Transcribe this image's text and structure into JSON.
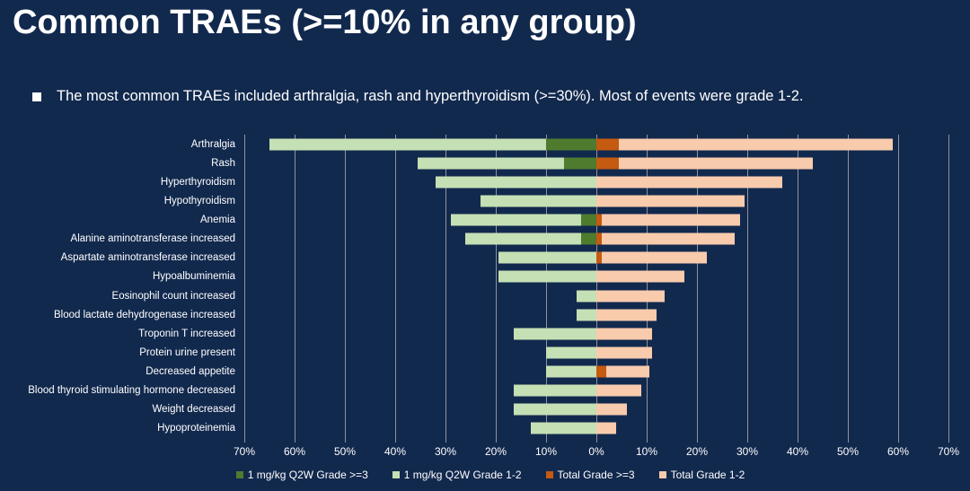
{
  "slide": {
    "title": "Common TRAEs (>=10% in any group)",
    "bullet_text": "The most common TRAEs included arthralgia, rash and hyperthyroidism (>=30%). Most of events were grade 1-2."
  },
  "colors": {
    "background": "#12294e",
    "text": "#ffffff",
    "gridline": "#a6a6a6",
    "q2w_grade3": "#4f7b2f",
    "q2w_grade12": "#c5e0b4",
    "total_grade3": "#c55a11",
    "total_grade12": "#f8cbad"
  },
  "chart_data": {
    "type": "bar",
    "variant": "horizontal-diverging-stacked",
    "title": "",
    "xlabel": "",
    "ylabel": "",
    "unit": "%",
    "grid": true,
    "categories": [
      "Arthralgia",
      "Rash",
      "Hyperthyroidism",
      "Hypothyroidism",
      "Anemia",
      "Alanine aminotransferase increased",
      "Aspartate aminotransferase increased",
      "Hypoalbuminemia",
      "Eosinophil count increased",
      "Blood lactate dehydrogenase increased",
      "Troponin T increased",
      "Protein urine present",
      "Decreased appetite",
      "Blood thyroid stimulating hormone decreased",
      "Weight decreased",
      "Hypoproteinemia"
    ],
    "series": [
      {
        "name": "1 mg/kg Q2W Grade >=3",
        "side": "left",
        "color_key": "q2w_grade3",
        "values": [
          10,
          6.5,
          0,
          0,
          3,
          3,
          0,
          0,
          0,
          0,
          0,
          0,
          0,
          0,
          0,
          0
        ]
      },
      {
        "name": "1 mg/kg Q2W Grade 1-2",
        "side": "left",
        "color_key": "q2w_grade12",
        "values": [
          55,
          29,
          32,
          23,
          26,
          23,
          19.5,
          19.5,
          4,
          4,
          16.5,
          10,
          10,
          16.5,
          16.5,
          13
        ]
      },
      {
        "name": "Total Grade >=3",
        "side": "right",
        "color_key": "total_grade3",
        "values": [
          4.5,
          4.5,
          0,
          0,
          1,
          1,
          1,
          0,
          0,
          0,
          0,
          0,
          2,
          0,
          0,
          0
        ]
      },
      {
        "name": "Total Grade 1-2",
        "side": "right",
        "color_key": "total_grade12",
        "values": [
          54.5,
          38.5,
          37,
          29.5,
          27.5,
          26.5,
          21,
          17.5,
          13.5,
          12,
          11,
          11,
          8.5,
          9,
          6,
          4
        ]
      }
    ],
    "axis": {
      "min": -70,
      "max": 70,
      "step": 10,
      "tick_values": [
        -70,
        -60,
        -50,
        -40,
        -30,
        -20,
        -10,
        0,
        10,
        20,
        30,
        40,
        50,
        60,
        70
      ],
      "tick_labels": [
        "70%",
        "60%",
        "50%",
        "40%",
        "30%",
        "20%",
        "10%",
        "0%",
        "10%",
        "20%",
        "30%",
        "40%",
        "50%",
        "60%",
        "70%"
      ]
    },
    "legend": {
      "position": "bottom",
      "entries": [
        "1 mg/kg Q2W Grade >=3",
        "1 mg/kg Q2W Grade 1-2",
        "Total Grade >=3",
        "Total Grade 1-2"
      ]
    }
  }
}
